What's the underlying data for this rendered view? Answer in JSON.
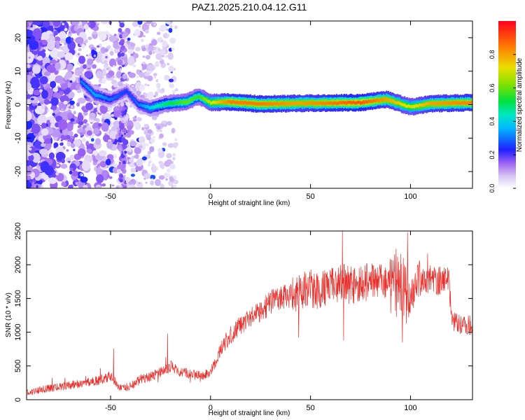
{
  "title": "PAZ1.2025.210.04.12.G11",
  "chart_data": [
    {
      "type": "heatmap",
      "xlabel": "Height of straight line (km)",
      "ylabel": "Frequency (Hz)",
      "xlim": [
        -92,
        131
      ],
      "ylim": [
        -25,
        25
      ],
      "xticks": [
        -50,
        0,
        50,
        100
      ],
      "yticks": [
        -20,
        -10,
        0,
        10,
        20
      ],
      "xtick_labels": [
        "-50",
        "0",
        "50",
        "100"
      ],
      "ytick_labels": [
        "-20",
        "-10",
        "0",
        "10",
        "20"
      ],
      "colorbar": {
        "label": "Normalized spectral amplitude",
        "range": [
          0,
          1
        ],
        "ticks": [
          0.0,
          0.2,
          0.4,
          0.6,
          0.8
        ],
        "tick_labels": [
          "0.0",
          "0.2",
          "0.4",
          "0.6",
          "0.8"
        ],
        "colormap": "rainbow"
      },
      "ridge": [
        {
          "x": -65,
          "y": 7,
          "amp": 0.3
        },
        {
          "x": -58,
          "y": 3,
          "amp": 0.35
        },
        {
          "x": -50,
          "y": 1.5,
          "amp": 0.3
        },
        {
          "x": -42,
          "y": 4,
          "amp": 0.25
        },
        {
          "x": -36,
          "y": 0,
          "amp": 0.3
        },
        {
          "x": -30,
          "y": -1,
          "amp": 0.4
        },
        {
          "x": -22,
          "y": 0.3,
          "amp": 0.5
        },
        {
          "x": -12,
          "y": 0.8,
          "amp": 0.6
        },
        {
          "x": -6,
          "y": 2.5,
          "amp": 0.55
        },
        {
          "x": 0,
          "y": 0.6,
          "amp": 0.7
        },
        {
          "x": 10,
          "y": 0.8,
          "amp": 0.85
        },
        {
          "x": 25,
          "y": 0.2,
          "amp": 0.85
        },
        {
          "x": 45,
          "y": 0.4,
          "amp": 0.8
        },
        {
          "x": 60,
          "y": 0.5,
          "amp": 0.85
        },
        {
          "x": 75,
          "y": 0.6,
          "amp": 0.9
        },
        {
          "x": 88,
          "y": 1.6,
          "amp": 0.8
        },
        {
          "x": 100,
          "y": -0.7,
          "amp": 0.7
        },
        {
          "x": 110,
          "y": 0.3,
          "amp": 0.8
        },
        {
          "x": 131,
          "y": 0.6,
          "amp": 0.85
        }
      ]
    },
    {
      "type": "line",
      "xlabel": "Height of straight line (km)",
      "ylabel": "SNR (10 * v/v)",
      "xlim": [
        -92,
        131
      ],
      "ylim": [
        0,
        2500
      ],
      "xticks": [
        -50,
        0,
        50,
        100
      ],
      "yticks": [
        0,
        500,
        1000,
        1500,
        2000,
        2500
      ],
      "xtick_labels": [
        "-50",
        "0",
        "50",
        "100"
      ],
      "ytick_labels": [
        "0",
        "500",
        "1000",
        "1500",
        "2000",
        "2500"
      ],
      "color": "#e8302c",
      "series": [
        {
          "x": [
            -92,
            -85,
            -75,
            -65,
            -55,
            -50,
            -45,
            -40,
            -35,
            -30,
            -25,
            -20,
            -15,
            -10,
            -5,
            0,
            5,
            10,
            15,
            20,
            25,
            30,
            35,
            40,
            45,
            50,
            55,
            60,
            65,
            70,
            75,
            80,
            85,
            90,
            95,
            100,
            105,
            110,
            115,
            119,
            121,
            125,
            131
          ],
          "values": [
            100,
            150,
            190,
            240,
            290,
            350,
            170,
            200,
            300,
            350,
            400,
            500,
            420,
            380,
            350,
            420,
            750,
            950,
            1100,
            1200,
            1300,
            1450,
            1500,
            1550,
            1600,
            1650,
            1600,
            1700,
            1750,
            1700,
            1700,
            1750,
            1750,
            1800,
            1700,
            1500,
            1800,
            1800,
            1750,
            1800,
            1150,
            1100,
            1100
          ]
        }
      ],
      "spikes": [
        {
          "x": -48.5,
          "y": 760
        },
        {
          "x": -21.5,
          "y": 980
        },
        {
          "x": 66,
          "y": 2500
        },
        {
          "x": 66.5,
          "y": 880
        },
        {
          "x": 96,
          "y": 850
        },
        {
          "x": 98.5,
          "y": 2480
        }
      ]
    }
  ]
}
